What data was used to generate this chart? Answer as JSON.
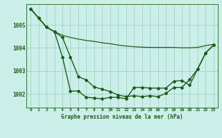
{
  "title": "Graphe pression niveau de la mer (hPa)",
  "background_color": "#cceee8",
  "grid_color": "#99ccbb",
  "line_color": "#1a5c1a",
  "text_color": "#1a5c1a",
  "xlim": [
    -0.5,
    23.5
  ],
  "ylim": [
    1001.4,
    1005.9
  ],
  "yticks": [
    1002,
    1003,
    1004,
    1005
  ],
  "xticks": [
    0,
    1,
    2,
    3,
    4,
    5,
    6,
    7,
    8,
    9,
    10,
    11,
    12,
    13,
    14,
    15,
    16,
    17,
    18,
    19,
    20,
    21,
    22,
    23
  ],
  "series": [
    {
      "x": [
        0,
        1,
        2,
        3,
        4,
        5,
        6,
        7,
        8,
        9,
        10,
        11,
        12,
        13,
        14,
        15,
        16,
        17,
        18,
        19,
        20,
        21,
        22,
        23
      ],
      "y": [
        1005.7,
        1005.3,
        1004.9,
        1004.7,
        1004.55,
        1004.45,
        1004.38,
        1004.32,
        1004.28,
        1004.22,
        1004.18,
        1004.12,
        1004.08,
        1004.05,
        1004.03,
        1004.02,
        1004.02,
        1004.02,
        1004.02,
        1004.0,
        1004.0,
        1004.02,
        1004.1,
        1004.15
      ],
      "marker": false,
      "linewidth": 0.9
    },
    {
      "x": [
        0,
        1,
        2,
        3,
        4,
        5,
        6,
        7,
        8,
        9,
        10,
        11,
        12,
        13,
        14,
        15,
        16,
        17,
        18,
        19,
        20,
        21,
        22,
        23
      ],
      "y": [
        1005.7,
        1005.3,
        1004.9,
        1004.7,
        1004.45,
        1003.6,
        1002.75,
        1002.6,
        1002.3,
        1002.2,
        1002.1,
        1001.95,
        1001.88,
        1001.92,
        1001.88,
        1001.92,
        1001.88,
        1002.02,
        1002.28,
        1002.28,
        1002.62,
        1003.08,
        1003.78,
        1004.12
      ],
      "marker": true,
      "linewidth": 1.0
    },
    {
      "x": [
        0,
        1,
        2,
        3,
        4,
        5,
        6,
        7,
        8,
        9,
        10,
        11,
        12,
        13,
        14,
        15,
        16,
        17,
        18,
        19,
        20,
        21,
        22,
        23
      ],
      "y": [
        1005.7,
        1005.3,
        1004.9,
        1004.7,
        1003.6,
        1002.12,
        1002.12,
        1001.85,
        1001.82,
        1001.78,
        1001.85,
        1001.85,
        1001.78,
        1002.28,
        1002.28,
        1002.25,
        1002.25,
        1002.25,
        1002.55,
        1002.58,
        1002.38,
        1003.08,
        1003.78,
        1004.12
      ],
      "marker": true,
      "linewidth": 1.0
    }
  ]
}
